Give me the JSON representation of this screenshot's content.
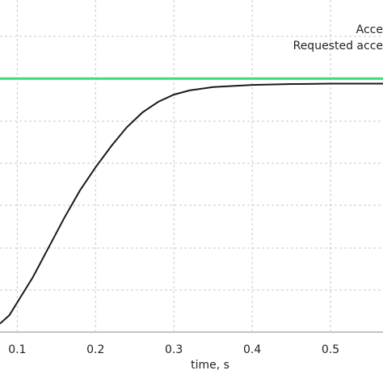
{
  "chart_data": {
    "type": "line",
    "x_label": "time, s",
    "xlim": [
      0.078,
      0.567
    ],
    "xticks": [
      0.1,
      0.2,
      0.3,
      0.4,
      0.5
    ],
    "ylim": [
      0,
      7.86
    ],
    "grid": true,
    "series": [
      {
        "name": "Acce",
        "color": "#1a1a1a",
        "x": [
          0.078,
          0.09,
          0.1,
          0.12,
          0.14,
          0.16,
          0.18,
          0.2,
          0.22,
          0.24,
          0.26,
          0.28,
          0.3,
          0.32,
          0.35,
          0.4,
          0.45,
          0.5,
          0.567
        ],
        "values": [
          0.2,
          0.4,
          0.7,
          1.3,
          2.0,
          2.7,
          3.35,
          3.9,
          4.4,
          4.85,
          5.2,
          5.45,
          5.62,
          5.72,
          5.8,
          5.85,
          5.87,
          5.88,
          5.88
        ]
      },
      {
        "name": "Requested acce",
        "color": "#3ddc78",
        "x": [
          0.078,
          0.567
        ],
        "values": [
          6,
          6
        ]
      }
    ]
  }
}
